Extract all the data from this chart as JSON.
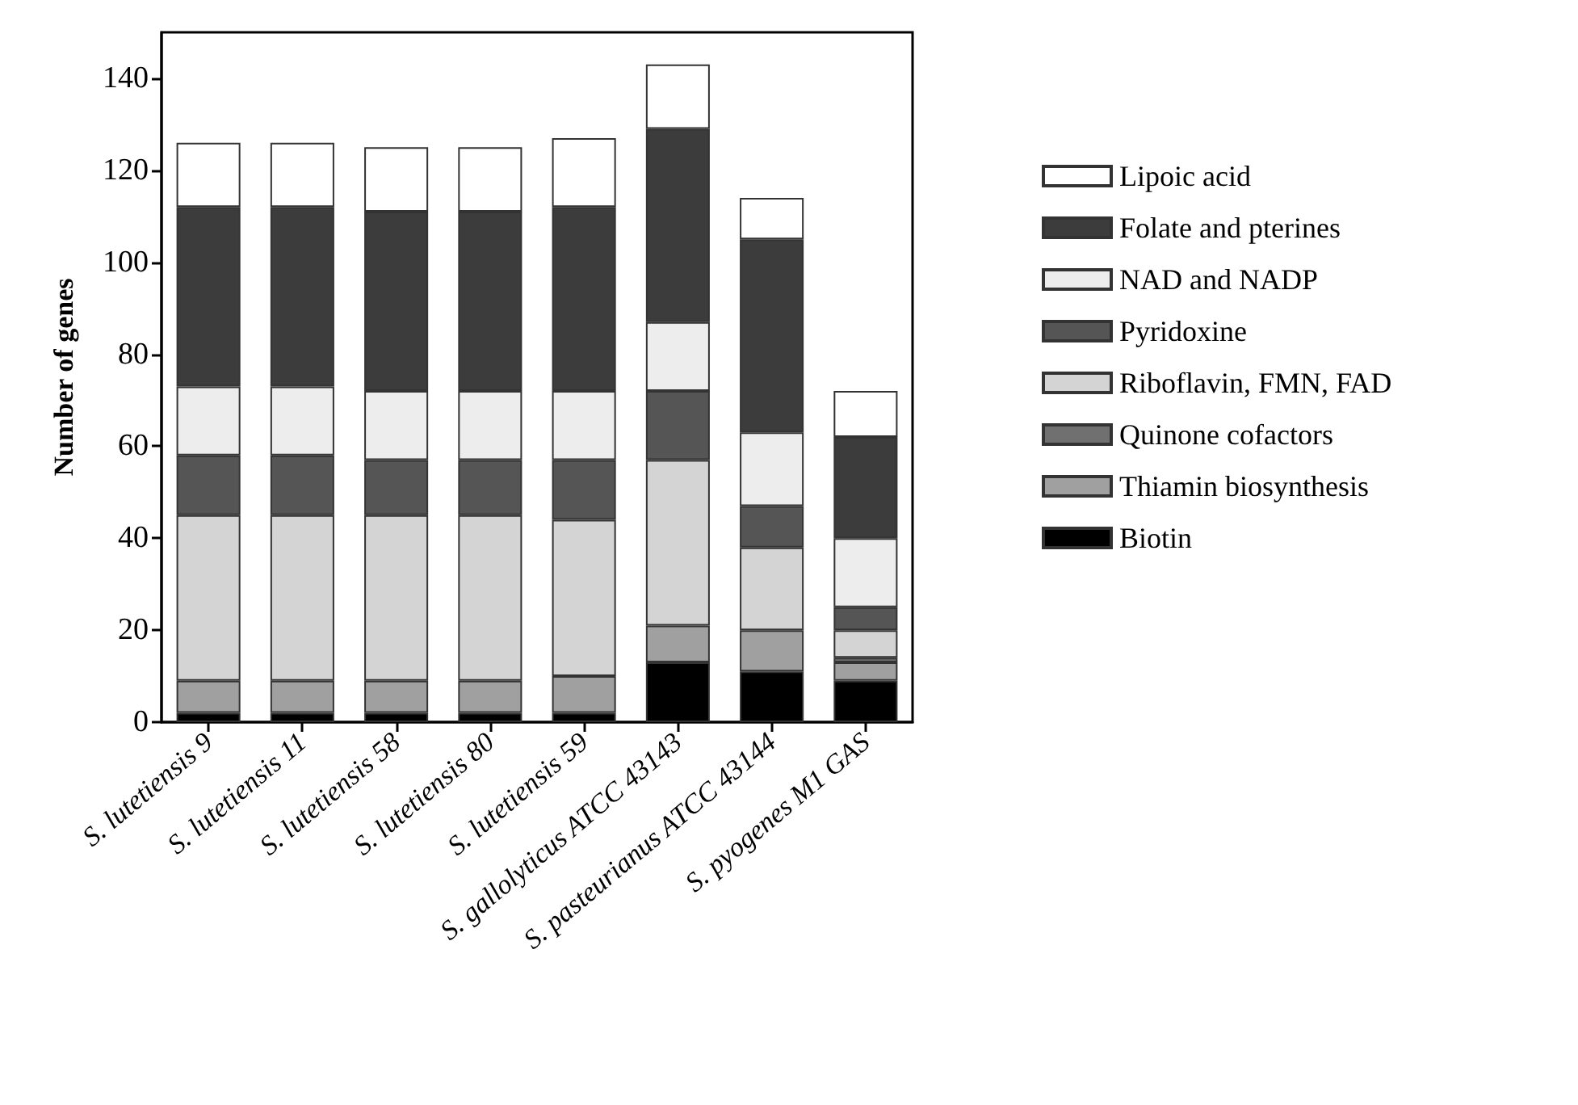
{
  "chart_data": {
    "type": "bar",
    "stacked": true,
    "ylabel": "Number of genes",
    "categories": [
      "S. lutetiensis 9",
      "S. lutetiensis 11",
      "S. lutetiensis 58",
      "S. lutetiensis 80",
      "S. lutetiensis 59",
      "S. gallolyticus ATCC 43143",
      "S. pasteurianus ATCC 43144",
      "S. pyogenes M1 GAS"
    ],
    "series": [
      {
        "name": "Biotin",
        "color": "#000000",
        "values": [
          2,
          2,
          2,
          2,
          2,
          13,
          11,
          9
        ]
      },
      {
        "name": "Thiamin biosynthesis",
        "color": "#a0a0a0",
        "values": [
          7,
          7,
          7,
          7,
          8,
          8,
          9,
          4
        ]
      },
      {
        "name": "Quinone cofactors",
        "color": "#707070",
        "values": [
          0,
          0,
          0,
          0,
          0,
          0,
          0,
          1
        ]
      },
      {
        "name": "Riboflavin, FMN, FAD",
        "color": "#d4d4d4",
        "values": [
          36,
          36,
          36,
          36,
          34,
          36,
          18,
          6
        ]
      },
      {
        "name": "Pyridoxine",
        "color": "#555555",
        "values": [
          13,
          13,
          12,
          12,
          13,
          15,
          9,
          5
        ]
      },
      {
        "name": "NAD and NADP",
        "color": "#ededed",
        "values": [
          15,
          15,
          15,
          15,
          15,
          15,
          16,
          15
        ]
      },
      {
        "name": "Folate and pterines",
        "color": "#3c3c3c",
        "values": [
          39,
          39,
          39,
          39,
          40,
          42,
          42,
          22
        ]
      },
      {
        "name": "Lipoic acid",
        "color": "#ffffff",
        "values": [
          14,
          14,
          14,
          14,
          15,
          14,
          9,
          10
        ]
      }
    ],
    "ylim": [
      0,
      150
    ],
    "yticks": [
      0,
      20,
      40,
      60,
      80,
      100,
      120,
      140
    ],
    "grid": false,
    "legend": "right"
  }
}
